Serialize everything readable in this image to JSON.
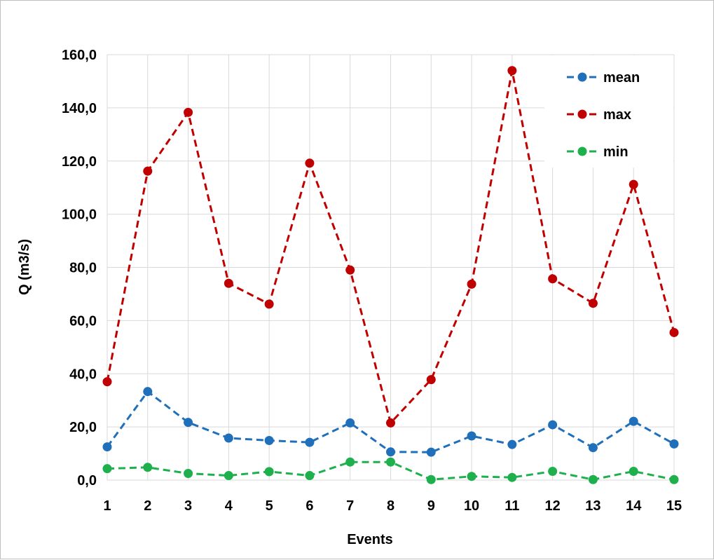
{
  "chart_data": {
    "type": "line",
    "title": "",
    "xlabel": "Events",
    "ylabel": "Q (m3/s)",
    "categories": [
      "1",
      "2",
      "3",
      "4",
      "5",
      "6",
      "7",
      "8",
      "9",
      "10",
      "11",
      "12",
      "13",
      "14",
      "15"
    ],
    "ylim": [
      0,
      160
    ],
    "yticks": [
      "0,0",
      "20,0",
      "40,0",
      "60,0",
      "80,0",
      "100,0",
      "120,0",
      "140,0",
      "160,0"
    ],
    "grid": "vertical and horizontal",
    "legend_position": "top-right",
    "line_style": "dashed with circle markers",
    "series": [
      {
        "name": "mean",
        "color": "#1f6fba",
        "values": [
          12.5,
          33.3,
          21.7,
          15.8,
          14.9,
          14.2,
          21.5,
          10.6,
          10.5,
          16.6,
          13.4,
          20.8,
          12.2,
          22.1,
          13.6
        ]
      },
      {
        "name": "max",
        "color": "#c00000",
        "values": [
          37.0,
          116.2,
          138.3,
          74.0,
          66.2,
          119.2,
          79.0,
          21.5,
          37.8,
          73.7,
          154.0,
          75.7,
          66.5,
          111.2,
          55.5
        ]
      },
      {
        "name": "min",
        "color": "#1fb04e",
        "values": [
          4.3,
          4.8,
          2.5,
          1.7,
          3.2,
          1.7,
          6.8,
          6.8,
          0.2,
          1.4,
          1.0,
          3.3,
          0.2,
          3.3,
          0.2
        ]
      }
    ]
  }
}
